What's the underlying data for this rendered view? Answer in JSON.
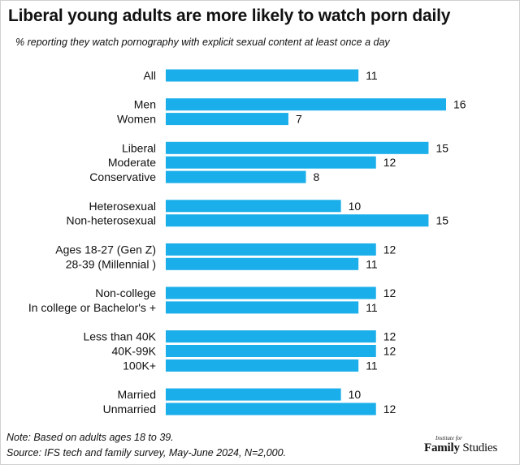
{
  "title": "Liberal young adults are more likely to watch porn daily",
  "subtitle": "% reporting they watch pornography with explicit sexual content at least once a day",
  "note": "Note: Based on adults ages 18 to 39.",
  "source": "Source: IFS tech and family survey, May-June 2024, N=2,000.",
  "logo": {
    "small": "Institute for",
    "bold": "Family",
    "rest": " Studies"
  },
  "colors": {
    "bar": "#1aaeea",
    "text": "#111111"
  },
  "chart_data": {
    "type": "bar",
    "orientation": "horizontal",
    "title": "Liberal young adults are more likely to watch porn daily",
    "ylabel": "",
    "xlabel": "",
    "xlim": [
      0,
      16
    ],
    "grid": false,
    "groups": [
      {
        "categories": [
          "All"
        ],
        "values": [
          11
        ]
      },
      {
        "categories": [
          "Men",
          "Women"
        ],
        "values": [
          16,
          7
        ]
      },
      {
        "categories": [
          "Liberal",
          "Moderate",
          "Conservative"
        ],
        "values": [
          15,
          12,
          8
        ]
      },
      {
        "categories": [
          "Heterosexual",
          "Non-heterosexual"
        ],
        "values": [
          10,
          15
        ]
      },
      {
        "categories": [
          "Ages 18-27 (Gen Z)",
          "28-39 (Millennial )"
        ],
        "values": [
          12,
          11
        ]
      },
      {
        "categories": [
          "Non-college",
          "In college or Bachelor's +"
        ],
        "values": [
          12,
          11
        ]
      },
      {
        "categories": [
          "Less than 40K",
          "40K-99K",
          "100K+"
        ],
        "values": [
          12,
          12,
          11
        ]
      },
      {
        "categories": [
          "Married",
          "Unmarried"
        ],
        "values": [
          10,
          12
        ]
      }
    ]
  }
}
